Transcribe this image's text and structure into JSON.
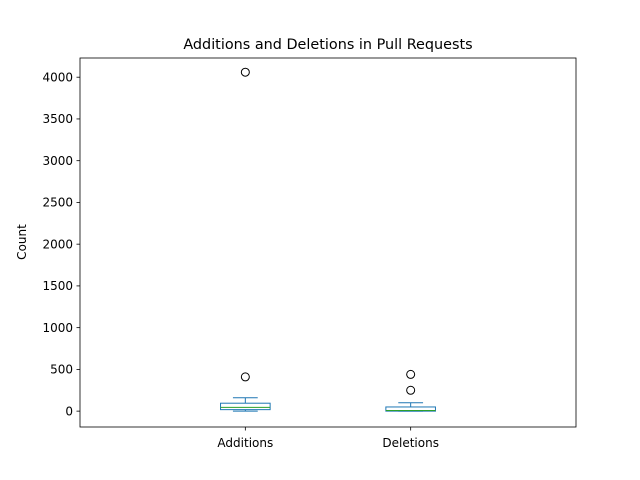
{
  "chart_data": {
    "type": "box",
    "title": "Additions and Deletions in Pull Requests",
    "xlabel": "",
    "ylabel": "Count",
    "ylim": [
      -190,
      4230
    ],
    "yticks": [
      0,
      500,
      1000,
      1500,
      2000,
      2500,
      3000,
      3500,
      4000
    ],
    "grid": false,
    "categories": [
      "Additions",
      "Deletions"
    ],
    "boxes": [
      {
        "name": "Additions",
        "whisker_low": 0,
        "q1": 18,
        "median": 45,
        "q3": 95,
        "whisker_high": 160,
        "outliers": [
          410,
          4060
        ]
      },
      {
        "name": "Deletions",
        "whisker_low": 0,
        "q1": 0,
        "median": 8,
        "q3": 50,
        "whisker_high": 100,
        "outliers": [
          250,
          440
        ]
      }
    ],
    "colors": {
      "box": "#1f77b4",
      "median": "#2ca02c",
      "outlier": "#000000",
      "axis": "#000000"
    }
  }
}
